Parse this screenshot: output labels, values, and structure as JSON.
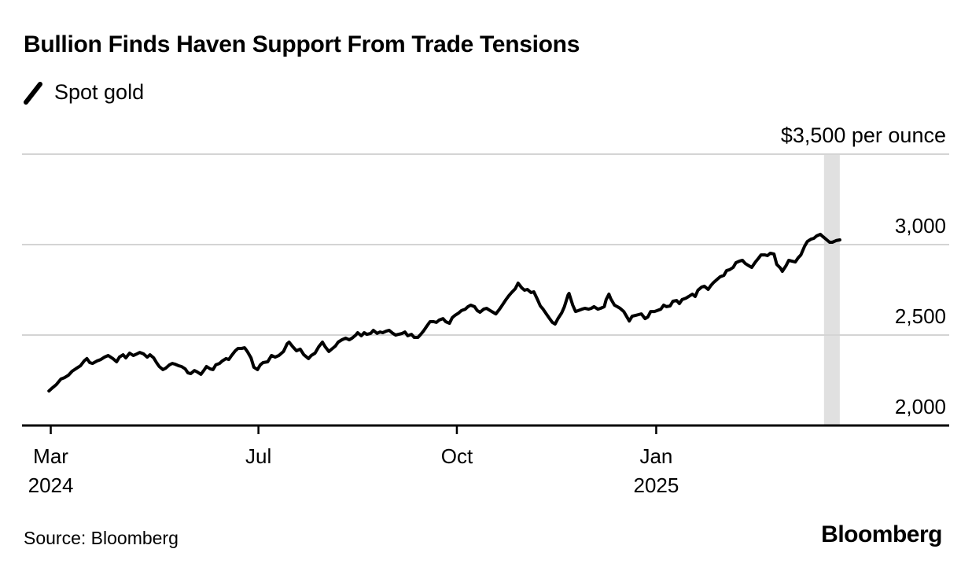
{
  "title": "Bullion Finds Haven Support From Trade Tensions",
  "legend": {
    "label": "Spot gold",
    "marker_icon": "line-slash-icon"
  },
  "source": "Source: Bloomberg",
  "brand": "Bloomberg",
  "colors": {
    "line": "#000000",
    "axis": "#000000",
    "gridline": "#d4d4d4",
    "highlight_band": "#e0e0e0",
    "text": "#000000",
    "background": "#ffffff"
  },
  "chart_data": {
    "type": "line",
    "title": "Bullion Finds Haven Support From Trade Tensions",
    "legend_entries": [
      "Spot gold"
    ],
    "unit_label": "$3,500 per ounce",
    "grid": "horizontal-only",
    "y_axis": {
      "side": "right",
      "range": [
        2000,
        3500
      ],
      "gridline_values": [
        2500,
        3000,
        3500
      ],
      "ticks": [
        {
          "value": 2000,
          "label": "2,000"
        },
        {
          "value": 2500,
          "label": "2,500"
        },
        {
          "value": 3000,
          "label": "3,000"
        }
      ],
      "top_label": {
        "value": 3500,
        "label": "$3,500 per ounce"
      }
    },
    "x_axis": {
      "ticks": [
        {
          "label": "Mar",
          "year": "2024",
          "f": 0.031
        },
        {
          "label": "Jul",
          "f": 0.255
        },
        {
          "label": "Oct",
          "f": 0.469
        },
        {
          "label": "Jan",
          "year": "2025",
          "f": 0.684
        }
      ]
    },
    "highlight_band": {
      "f_start": 0.865,
      "f_end": 0.882
    },
    "series": [
      {
        "name": "Spot gold",
        "color": "#000000",
        "points": [
          [
            0.029,
            2191
          ],
          [
            0.033,
            2209
          ],
          [
            0.037,
            2226
          ],
          [
            0.042,
            2257
          ],
          [
            0.046,
            2265
          ],
          [
            0.05,
            2278
          ],
          [
            0.054,
            2300
          ],
          [
            0.059,
            2317
          ],
          [
            0.063,
            2330
          ],
          [
            0.067,
            2357
          ],
          [
            0.07,
            2370
          ],
          [
            0.073,
            2348
          ],
          [
            0.076,
            2343
          ],
          [
            0.081,
            2357
          ],
          [
            0.085,
            2365
          ],
          [
            0.089,
            2378
          ],
          [
            0.093,
            2387
          ],
          [
            0.098,
            2370
          ],
          [
            0.102,
            2352
          ],
          [
            0.105,
            2378
          ],
          [
            0.109,
            2391
          ],
          [
            0.112,
            2374
          ],
          [
            0.116,
            2400
          ],
          [
            0.12,
            2387
          ],
          [
            0.124,
            2396
          ],
          [
            0.127,
            2404
          ],
          [
            0.131,
            2396
          ],
          [
            0.135,
            2378
          ],
          [
            0.138,
            2391
          ],
          [
            0.142,
            2374
          ],
          [
            0.145,
            2348
          ],
          [
            0.148,
            2326
          ],
          [
            0.152,
            2309
          ],
          [
            0.155,
            2317
          ],
          [
            0.159,
            2335
          ],
          [
            0.162,
            2343
          ],
          [
            0.165,
            2339
          ],
          [
            0.169,
            2330
          ],
          [
            0.172,
            2326
          ],
          [
            0.176,
            2313
          ],
          [
            0.179,
            2291
          ],
          [
            0.182,
            2287
          ],
          [
            0.186,
            2304
          ],
          [
            0.189,
            2296
          ],
          [
            0.193,
            2283
          ],
          [
            0.196,
            2304
          ],
          [
            0.199,
            2326
          ],
          [
            0.203,
            2313
          ],
          [
            0.206,
            2309
          ],
          [
            0.209,
            2335
          ],
          [
            0.213,
            2343
          ],
          [
            0.216,
            2357
          ],
          [
            0.22,
            2370
          ],
          [
            0.223,
            2365
          ],
          [
            0.226,
            2387
          ],
          [
            0.23,
            2413
          ],
          [
            0.233,
            2426
          ],
          [
            0.237,
            2426
          ],
          [
            0.24,
            2430
          ],
          [
            0.243,
            2409
          ],
          [
            0.247,
            2374
          ],
          [
            0.25,
            2322
          ],
          [
            0.254,
            2309
          ],
          [
            0.257,
            2335
          ],
          [
            0.26,
            2348
          ],
          [
            0.265,
            2352
          ],
          [
            0.269,
            2387
          ],
          [
            0.273,
            2378
          ],
          [
            0.277,
            2387
          ],
          [
            0.282,
            2409
          ],
          [
            0.286,
            2452
          ],
          [
            0.288,
            2461
          ],
          [
            0.292,
            2435
          ],
          [
            0.296,
            2413
          ],
          [
            0.3,
            2422
          ],
          [
            0.304,
            2391
          ],
          [
            0.309,
            2370
          ],
          [
            0.312,
            2387
          ],
          [
            0.316,
            2400
          ],
          [
            0.32,
            2435
          ],
          [
            0.324,
            2461
          ],
          [
            0.327,
            2435
          ],
          [
            0.331,
            2409
          ],
          [
            0.334,
            2422
          ],
          [
            0.338,
            2439
          ],
          [
            0.341,
            2461
          ],
          [
            0.345,
            2474
          ],
          [
            0.349,
            2483
          ],
          [
            0.353,
            2474
          ],
          [
            0.356,
            2483
          ],
          [
            0.36,
            2500
          ],
          [
            0.362,
            2513
          ],
          [
            0.366,
            2496
          ],
          [
            0.369,
            2513
          ],
          [
            0.372,
            2504
          ],
          [
            0.376,
            2509
          ],
          [
            0.379,
            2526
          ],
          [
            0.383,
            2509
          ],
          [
            0.386,
            2517
          ],
          [
            0.389,
            2513
          ],
          [
            0.393,
            2522
          ],
          [
            0.396,
            2526
          ],
          [
            0.4,
            2509
          ],
          [
            0.403,
            2500
          ],
          [
            0.406,
            2504
          ],
          [
            0.41,
            2509
          ],
          [
            0.413,
            2517
          ],
          [
            0.416,
            2496
          ],
          [
            0.42,
            2504
          ],
          [
            0.423,
            2487
          ],
          [
            0.427,
            2487
          ],
          [
            0.43,
            2504
          ],
          [
            0.433,
            2522
          ],
          [
            0.437,
            2552
          ],
          [
            0.44,
            2574
          ],
          [
            0.444,
            2574
          ],
          [
            0.447,
            2570
          ],
          [
            0.45,
            2583
          ],
          [
            0.454,
            2591
          ],
          [
            0.457,
            2574
          ],
          [
            0.461,
            2565
          ],
          [
            0.464,
            2596
          ],
          [
            0.467,
            2609
          ],
          [
            0.471,
            2622
          ],
          [
            0.474,
            2635
          ],
          [
            0.478,
            2643
          ],
          [
            0.481,
            2657
          ],
          [
            0.484,
            2665
          ],
          [
            0.488,
            2657
          ],
          [
            0.491,
            2635
          ],
          [
            0.494,
            2626
          ],
          [
            0.498,
            2643
          ],
          [
            0.501,
            2648
          ],
          [
            0.505,
            2635
          ],
          [
            0.508,
            2626
          ],
          [
            0.511,
            2617
          ],
          [
            0.515,
            2643
          ],
          [
            0.518,
            2665
          ],
          [
            0.522,
            2696
          ],
          [
            0.525,
            2717
          ],
          [
            0.528,
            2735
          ],
          [
            0.532,
            2756
          ],
          [
            0.535,
            2787
          ],
          [
            0.539,
            2761
          ],
          [
            0.542,
            2748
          ],
          [
            0.545,
            2752
          ],
          [
            0.549,
            2735
          ],
          [
            0.552,
            2739
          ],
          [
            0.556,
            2696
          ],
          [
            0.559,
            2661
          ],
          [
            0.562,
            2643
          ],
          [
            0.566,
            2613
          ],
          [
            0.569,
            2591
          ],
          [
            0.572,
            2570
          ],
          [
            0.575,
            2561
          ],
          [
            0.578,
            2591
          ],
          [
            0.582,
            2622
          ],
          [
            0.585,
            2657
          ],
          [
            0.589,
            2722
          ],
          [
            0.59,
            2730
          ],
          [
            0.594,
            2665
          ],
          [
            0.597,
            2630
          ],
          [
            0.6,
            2635
          ],
          [
            0.604,
            2643
          ],
          [
            0.607,
            2648
          ],
          [
            0.611,
            2643
          ],
          [
            0.614,
            2648
          ],
          [
            0.617,
            2657
          ],
          [
            0.621,
            2643
          ],
          [
            0.624,
            2648
          ],
          [
            0.628,
            2657
          ],
          [
            0.63,
            2696
          ],
          [
            0.633,
            2726
          ],
          [
            0.635,
            2700
          ],
          [
            0.639,
            2665
          ],
          [
            0.642,
            2657
          ],
          [
            0.645,
            2648
          ],
          [
            0.649,
            2630
          ],
          [
            0.652,
            2604
          ],
          [
            0.655,
            2578
          ],
          [
            0.658,
            2604
          ],
          [
            0.662,
            2609
          ],
          [
            0.665,
            2613
          ],
          [
            0.668,
            2617
          ],
          [
            0.672,
            2591
          ],
          [
            0.675,
            2600
          ],
          [
            0.678,
            2630
          ],
          [
            0.682,
            2630
          ],
          [
            0.685,
            2635
          ],
          [
            0.689,
            2643
          ],
          [
            0.692,
            2665
          ],
          [
            0.695,
            2657
          ],
          [
            0.699,
            2661
          ],
          [
            0.702,
            2687
          ],
          [
            0.706,
            2691
          ],
          [
            0.709,
            2674
          ],
          [
            0.712,
            2696
          ],
          [
            0.716,
            2704
          ],
          [
            0.719,
            2713
          ],
          [
            0.723,
            2726
          ],
          [
            0.726,
            2713
          ],
          [
            0.729,
            2748
          ],
          [
            0.733,
            2765
          ],
          [
            0.736,
            2770
          ],
          [
            0.74,
            2752
          ],
          [
            0.743,
            2774
          ],
          [
            0.746,
            2791
          ],
          [
            0.75,
            2809
          ],
          [
            0.753,
            2822
          ],
          [
            0.757,
            2830
          ],
          [
            0.76,
            2857
          ],
          [
            0.763,
            2861
          ],
          [
            0.767,
            2874
          ],
          [
            0.77,
            2900
          ],
          [
            0.774,
            2909
          ],
          [
            0.777,
            2913
          ],
          [
            0.78,
            2896
          ],
          [
            0.784,
            2883
          ],
          [
            0.787,
            2874
          ],
          [
            0.791,
            2904
          ],
          [
            0.794,
            2922
          ],
          [
            0.797,
            2943
          ],
          [
            0.801,
            2943
          ],
          [
            0.804,
            2939
          ],
          [
            0.807,
            2952
          ],
          [
            0.811,
            2948
          ],
          [
            0.814,
            2891
          ],
          [
            0.818,
            2870
          ],
          [
            0.82,
            2852
          ],
          [
            0.824,
            2883
          ],
          [
            0.827,
            2913
          ],
          [
            0.83,
            2909
          ],
          [
            0.834,
            2904
          ],
          [
            0.837,
            2926
          ],
          [
            0.84,
            2943
          ],
          [
            0.844,
            2991
          ],
          [
            0.847,
            3017
          ],
          [
            0.851,
            3030
          ],
          [
            0.854,
            3035
          ],
          [
            0.857,
            3048
          ],
          [
            0.861,
            3057
          ],
          [
            0.864,
            3043
          ],
          [
            0.868,
            3026
          ],
          [
            0.871,
            3013
          ],
          [
            0.874,
            3013
          ],
          [
            0.878,
            3022
          ],
          [
            0.882,
            3026
          ]
        ]
      }
    ]
  }
}
